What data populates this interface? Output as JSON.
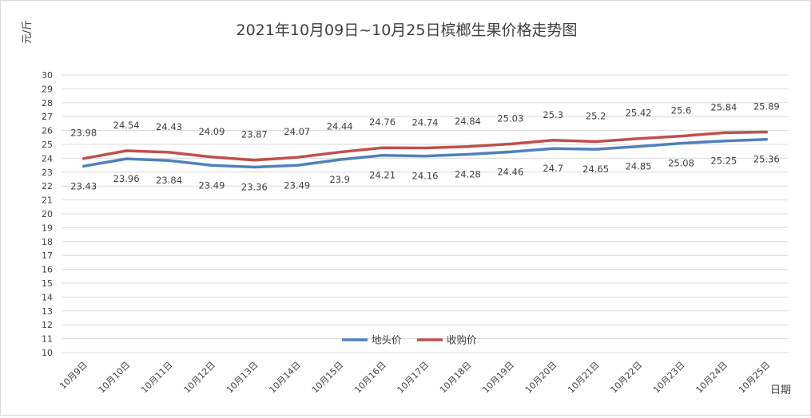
{
  "chart_data": {
    "type": "line",
    "title": "2021年10月09日~10月25日槟榔生果价格走势图",
    "ylabel": "元/斤",
    "xlabel": "日期",
    "ylim": [
      10,
      30
    ],
    "ystep": 1,
    "grid": true,
    "legend_position": "bottom-center",
    "categories": [
      "10月9日",
      "10月10日",
      "10月11日",
      "10月12日",
      "10月13日",
      "10月14日",
      "10月15日",
      "10月16日",
      "10月17日",
      "10月18日",
      "10月19日",
      "10月20日",
      "10月21日",
      "10月22日",
      "10月23日",
      "10月24日",
      "10月25日"
    ],
    "series": [
      {
        "name": "地头价",
        "color": "#4f81bd",
        "label_position": "below",
        "values": [
          23.43,
          23.96,
          23.84,
          23.49,
          23.36,
          23.49,
          23.9,
          24.21,
          24.16,
          24.28,
          24.46,
          24.7,
          24.65,
          24.85,
          25.08,
          25.25,
          25.36
        ]
      },
      {
        "name": "收购价",
        "color": "#c0504d",
        "label_position": "above",
        "values": [
          23.98,
          24.54,
          24.43,
          24.09,
          23.87,
          24.07,
          24.44,
          24.76,
          24.74,
          24.84,
          25.03,
          25.3,
          25.2,
          25.42,
          25.6,
          25.84,
          25.89
        ]
      }
    ]
  }
}
